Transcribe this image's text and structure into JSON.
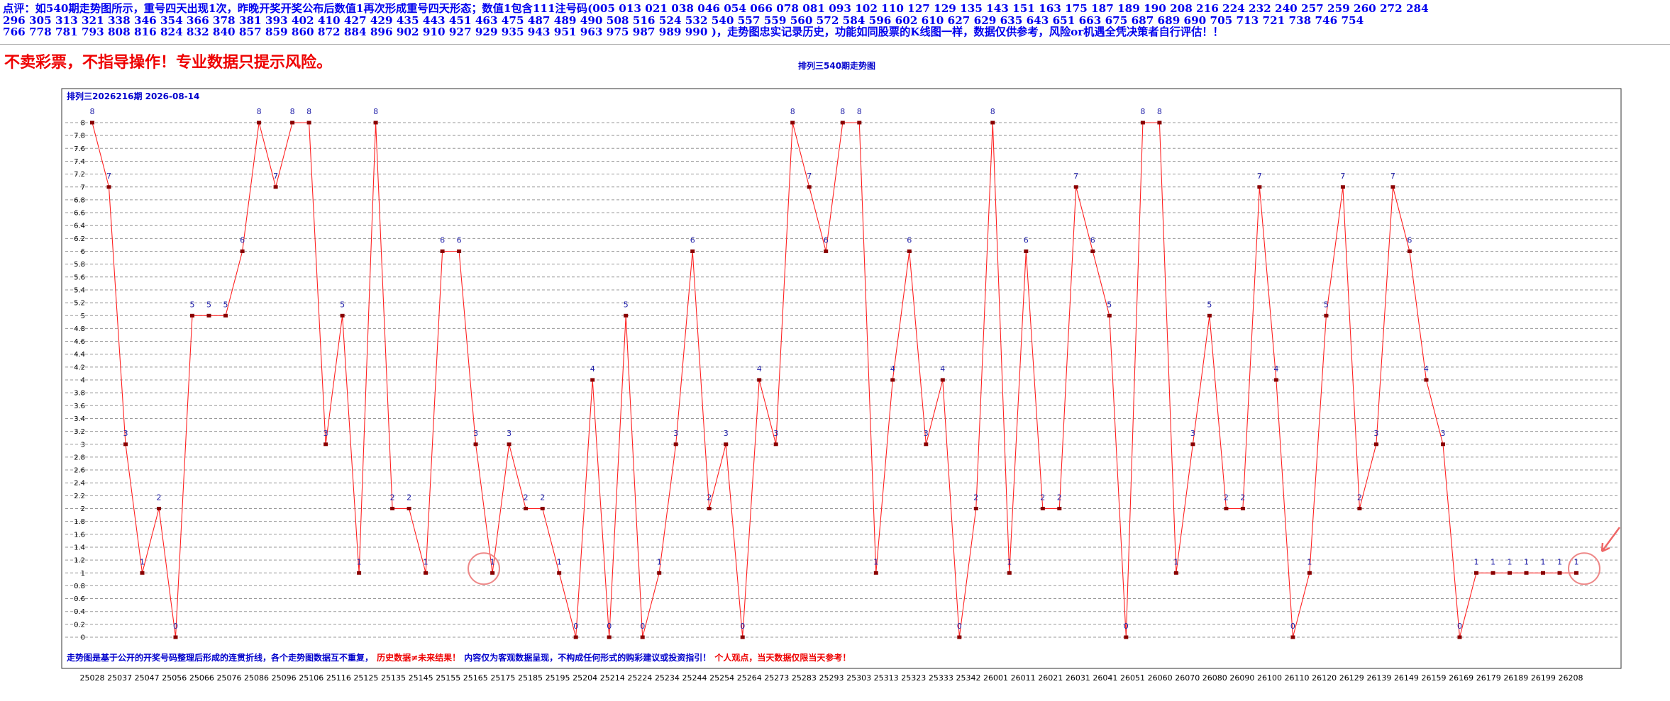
{
  "header": {
    "lines": [
      "点评：如540期走势图所示，重号四天出现1次，昨晚开奖开奖公布后数值1再次形成重号四天形态；数值1包含111注号码(005   013   021   038   046   054   066   078   081   093   102   110   127   129   135   143   151   163   175   187   189   190   208   216   224   232   240   257   259   260   272   284",
      "296   305   313   321   338   346   354   366   378   381   393   402   410   427   429   435   443   451   463   475   487   489   490   508   516   524   532   540   557   559   560   572   584   596   602   610   627   629   635   643   651   663   675   687   689   690   705   713   721   738   746   754",
      "766   778   781   793   808   816   824   832   840   857   859   860   872   884   896   902   910   927   929   935   943   951   963   975   987   989   990 )，走势图忠实记录历史，功能如同股票的K线图一样，数据仅供参考，风险or机遇全凭决策者自行评估！！"
    ],
    "warning": "不卖彩票，不指导操作！专业数据只提示风险。"
  },
  "chart_data": {
    "type": "line",
    "title": "排列三540期走势图",
    "subtitle": "排列三2026216期  2026-08-14",
    "ylim": [
      0,
      8
    ],
    "yticks": [
      "0",
      "0.2",
      "0.4",
      "0.6",
      "0.8",
      "1",
      "1.2",
      "1.4",
      "1.6",
      "1.8",
      "2",
      "2.2",
      "2.4",
      "2.6",
      "2.8",
      "3",
      "3.2",
      "3.4",
      "3.6",
      "3.8",
      "4",
      "4.2",
      "4.4",
      "4.6",
      "4.8",
      "5",
      "5.2",
      "5.4",
      "5.6",
      "5.8",
      "6",
      "6.2",
      "6.4",
      "6.6",
      "6.8",
      "7",
      "7.2",
      "7.4",
      "7.6",
      "7.8",
      "8"
    ],
    "x_tick_labels": [
      "25028",
      "25037",
      "25047",
      "25056",
      "25066",
      "25076",
      "25086",
      "25096",
      "25106",
      "25116",
      "25125",
      "25135",
      "25145",
      "25155",
      "25165",
      "25175",
      "25185",
      "25195",
      "25204",
      "25214",
      "25224",
      "25234",
      "25244",
      "25254",
      "25264",
      "25273",
      "25283",
      "25293",
      "25303",
      "25313",
      "25323",
      "25333",
      "25342",
      "26001",
      "26011",
      "26021",
      "26031",
      "26041",
      "26051",
      "26060",
      "26070",
      "26080",
      "26090",
      "26100",
      "26110",
      "26120",
      "26129",
      "26139",
      "26149",
      "26159",
      "26169",
      "26179",
      "26189",
      "26199",
      "26208"
    ],
    "grid": true,
    "legend": "none",
    "series": [
      {
        "color": "#ff2222",
        "values": [
          8,
          7,
          3,
          1,
          2,
          0,
          5,
          5,
          5,
          6,
          8,
          7,
          8,
          8,
          3,
          5,
          1,
          8,
          2,
          2,
          1,
          6,
          6,
          3,
          1,
          3,
          2,
          2,
          1,
          0,
          4,
          0,
          5,
          0,
          1,
          3,
          6,
          2,
          3,
          0,
          4,
          3,
          8,
          7,
          6,
          8,
          8,
          1,
          4,
          6,
          3,
          4,
          0,
          2,
          8,
          1,
          6,
          2,
          2,
          7,
          6,
          5,
          0,
          8,
          8,
          1,
          3,
          5,
          2,
          2,
          7,
          4,
          0,
          1,
          5,
          7,
          2,
          3,
          7,
          6,
          4,
          3,
          0,
          1,
          1,
          1,
          1,
          1,
          1,
          1
        ],
        "note": "approximate sampled values read from the plot"
      }
    ]
  },
  "footer": {
    "blue_1": "走势图是基于公开的开奖号码整理后形成的连贯折线，各个走势图数据互不重复，",
    "red_1": "历史数据≠未来结果！",
    "blue_2": "内容仅为客观数据呈现，不构成任何形式的购彩建议或投资指引！",
    "red_2": "个人观点，当天数据仅限当天参考！"
  },
  "colors": {
    "header": "#0000ee",
    "warning": "#ee0000",
    "line": "#ff2222",
    "point": "#880000",
    "point_label": "#2222aa"
  }
}
